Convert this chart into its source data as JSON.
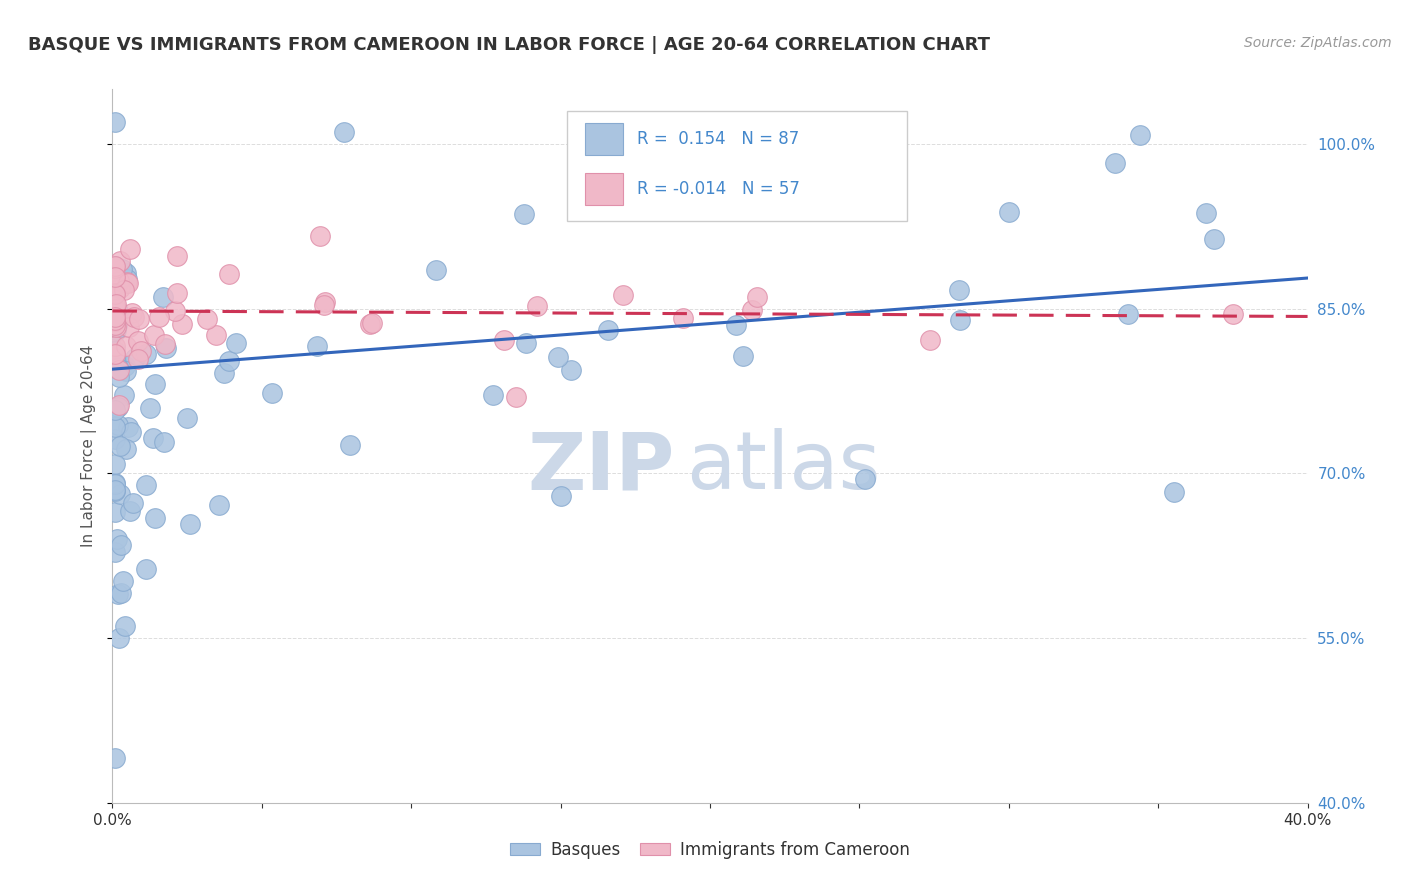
{
  "title": "BASQUE VS IMMIGRANTS FROM CAMEROON IN LABOR FORCE | AGE 20-64 CORRELATION CHART",
  "source": "Source: ZipAtlas.com",
  "ylabel": "In Labor Force | Age 20-64",
  "xlim": [
    0.0,
    0.4
  ],
  "ylim": [
    0.4,
    1.05
  ],
  "ytick_positions": [
    0.4,
    0.55,
    0.7,
    0.85,
    1.0
  ],
  "ytick_labels": [
    "40.0%",
    "55.0%",
    "70.0%",
    "85.0%",
    "100.0%"
  ],
  "legend1_R": "0.154",
  "legend1_N": "87",
  "legend2_R": "-0.014",
  "legend2_N": "57",
  "bottom_legend1": "Basques",
  "bottom_legend2": "Immigrants from Cameroon",
  "blue_color": "#aac4e0",
  "blue_edge": "#88aad0",
  "pink_color": "#f0b8c8",
  "pink_edge": "#e090aa",
  "line_blue_color": "#3366bb",
  "line_pink_color": "#cc3355",
  "watermark_zip": "ZIP",
  "watermark_atlas": "atlas",
  "watermark_color": "#ccd8e8",
  "grid_color": "#dddddd",
  "bg_color": "#ffffff",
  "tick_color_right": "#4488cc",
  "title_color": "#333333",
  "source_color": "#999999",
  "blue_line_y0": 0.795,
  "blue_line_y1": 0.878,
  "pink_line_y0": 0.848,
  "pink_line_y1": 0.843
}
